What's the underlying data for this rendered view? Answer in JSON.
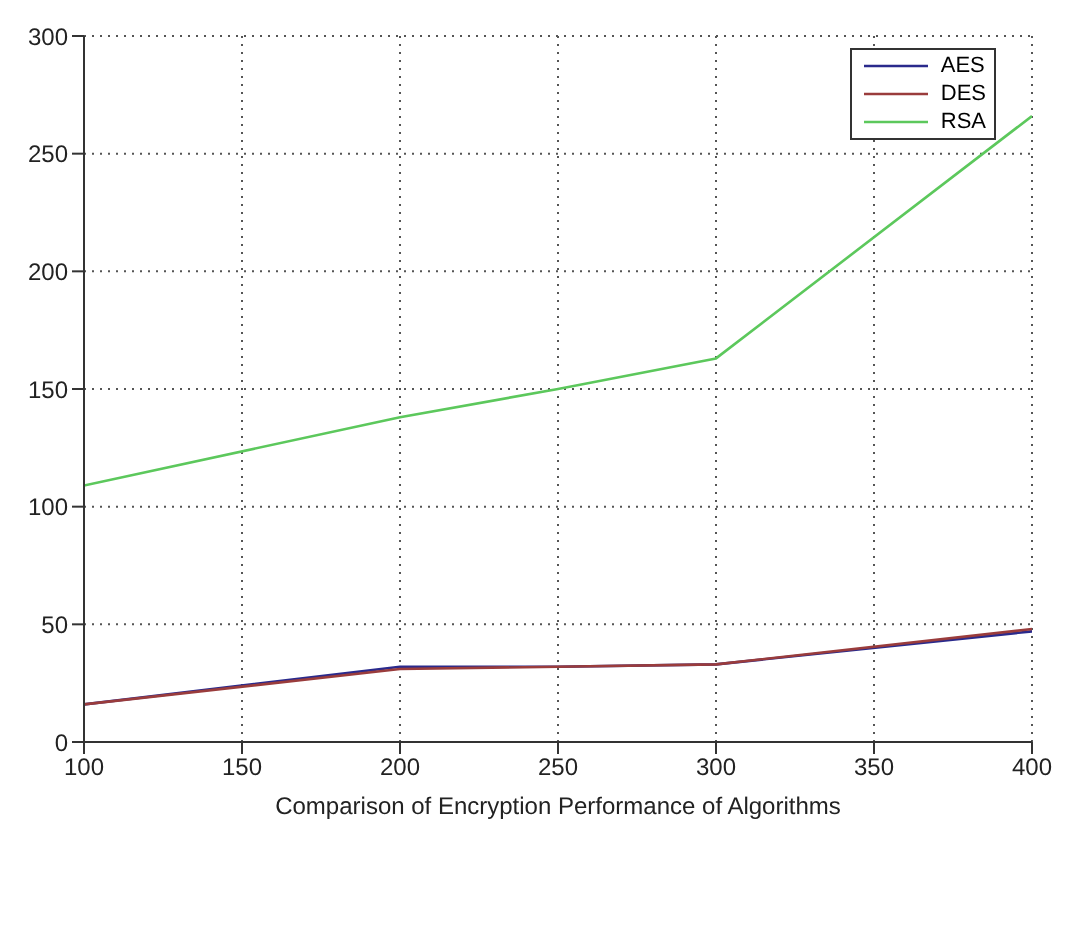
{
  "chart_data": {
    "type": "line",
    "xlabel": "Comparison of Encryption Performance of  Algorithms",
    "x": [
      100,
      200,
      250,
      300,
      400
    ],
    "series": [
      {
        "name": "AES",
        "color": "#2a2a8c",
        "values": [
          16,
          32,
          32,
          33,
          47
        ]
      },
      {
        "name": "DES",
        "color": "#9a3c3c",
        "values": [
          16,
          31,
          32,
          33,
          48
        ]
      },
      {
        "name": "RSA",
        "color": "#5cc85c",
        "values": [
          109,
          138,
          150,
          163,
          266
        ]
      }
    ],
    "xlim": [
      100,
      400
    ],
    "xticks": [
      100,
      150,
      200,
      250,
      300,
      350,
      400
    ],
    "ylim": [
      0,
      300
    ],
    "yticks": [
      0,
      50,
      100,
      150,
      200,
      250,
      300
    ],
    "grid": true,
    "legend": "top right",
    "marker": "none",
    "line_style": "solid"
  }
}
